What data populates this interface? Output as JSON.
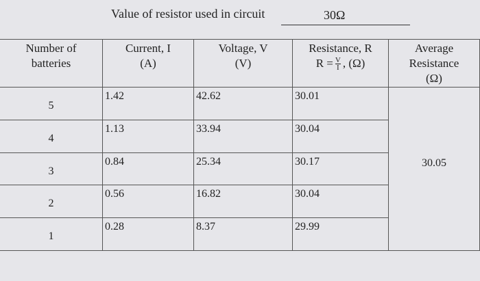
{
  "header": {
    "label": "Value of resistor used in circuit",
    "value": "30Ω"
  },
  "table": {
    "columns": [
      {
        "lines": [
          "Number of",
          "batteries"
        ]
      },
      {
        "lines": [
          "Current, I",
          "(A)"
        ]
      },
      {
        "lines": [
          "Voltage, V",
          "(V)"
        ]
      },
      {
        "lines": [
          "Resistance, R"
        ],
        "formula": {
          "lhs": "R =",
          "numerator": "V",
          "denominator": "I",
          "unit": ", (Ω)"
        }
      },
      {
        "lines": [
          "Average",
          "Resistance",
          "(Ω)"
        ]
      }
    ],
    "rows": [
      [
        5,
        1.42,
        42.62,
        30.01
      ],
      [
        4,
        1.13,
        33.94,
        30.04
      ],
      [
        3,
        0.84,
        25.34,
        30.17
      ],
      [
        2,
        0.56,
        16.82,
        30.04
      ],
      [
        1,
        0.28,
        8.37,
        29.99
      ]
    ],
    "average": 30.05
  }
}
